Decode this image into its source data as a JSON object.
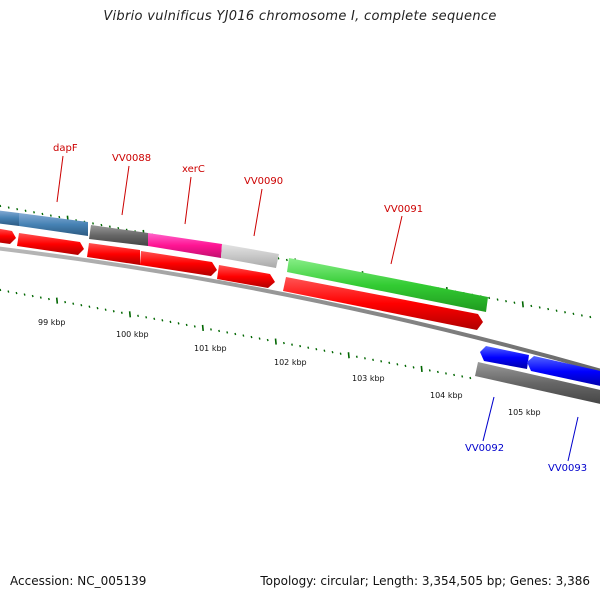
{
  "title": "Vibrio vulnificus YJ016 chromosome I, complete sequence",
  "footer": {
    "accession": "Accession: NC_005139",
    "summary": "Topology: circular; Length: 3,354,505 bp; Genes: 3,386"
  },
  "colors": {
    "forward_label": "#cc0000",
    "reverse_label": "#0000cc",
    "tick": "#006600",
    "backbone": "#888888",
    "cds": "#ff0000",
    "cds_reverse": "#0000ff"
  },
  "scale_labels": [
    "99 kbp",
    "100 kbp",
    "101 kbp",
    "102 kbp",
    "103 kbp",
    "104 kbp",
    "105 kbp"
  ],
  "gene_labels": [
    {
      "text": "dapF",
      "strand": "forward"
    },
    {
      "text": "VV0088",
      "strand": "forward"
    },
    {
      "text": "xerC",
      "strand": "forward"
    },
    {
      "text": "VV0090",
      "strand": "forward"
    },
    {
      "text": "VV0091",
      "strand": "forward"
    },
    {
      "text": "VV0092",
      "strand": "reverse"
    },
    {
      "text": "VV0093",
      "strand": "reverse"
    }
  ]
}
